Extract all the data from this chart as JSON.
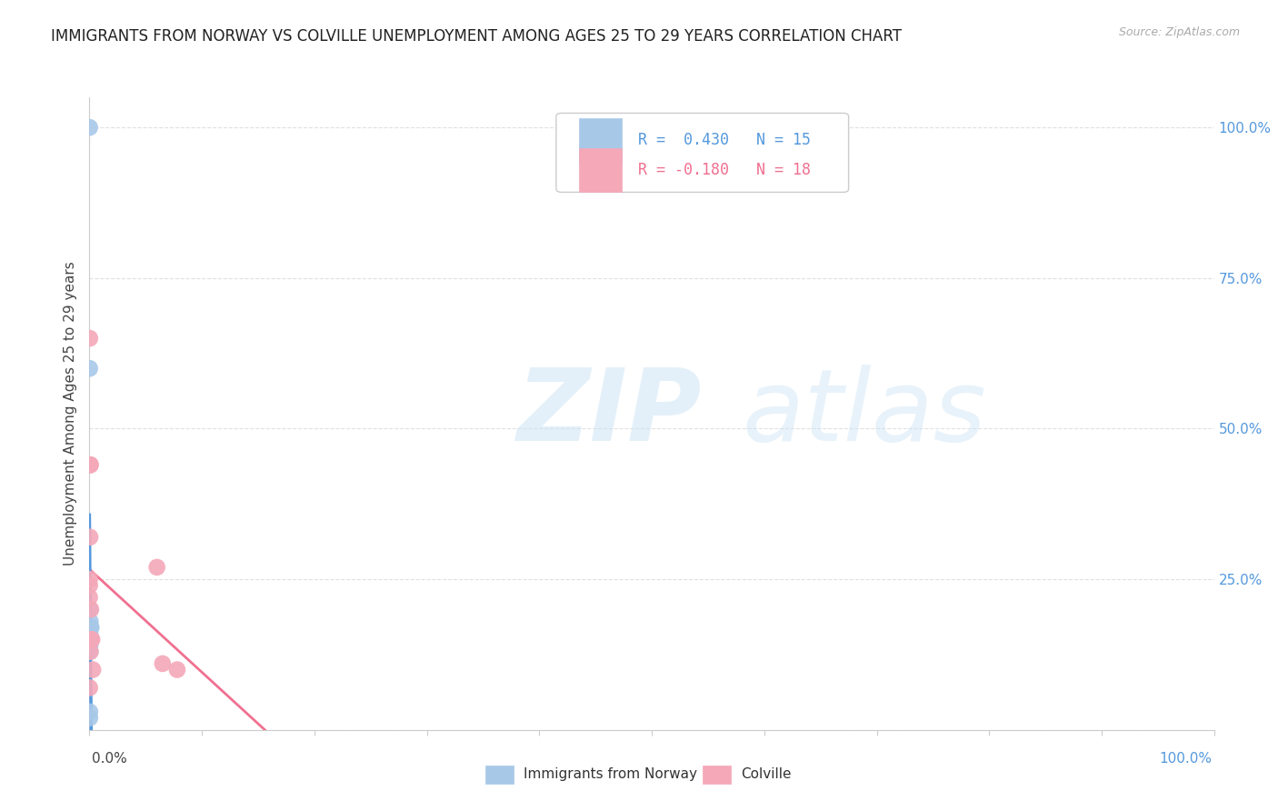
{
  "title": "IMMIGRANTS FROM NORWAY VS COLVILLE UNEMPLOYMENT AMONG AGES 25 TO 29 YEARS CORRELATION CHART",
  "source": "Source: ZipAtlas.com",
  "ylabel": "Unemployment Among Ages 25 to 29 years",
  "legend_label1": "Immigrants from Norway",
  "legend_label2": "Colville",
  "legend_R1": "R =  0.430",
  "legend_N1": "N = 15",
  "legend_R2": "R = -0.180",
  "legend_N2": "N = 18",
  "norway_color": "#a8c8e8",
  "colville_color": "#f4a8b8",
  "norway_line_color": "#5599dd",
  "colville_line_color": "#f07090",
  "norway_points_x": [
    0.0002,
    0.0002,
    0.0003,
    0.0003,
    0.0003,
    0.0004,
    0.0004,
    0.0005,
    0.0005,
    0.0006,
    0.0006,
    0.0007,
    0.0008,
    0.0009,
    0.0015
  ],
  "norway_points_y": [
    1.0,
    0.6,
    0.02,
    0.03,
    0.2,
    0.17,
    0.15,
    0.16,
    0.14,
    0.15,
    0.13,
    0.18,
    0.17,
    0.15,
    0.17
  ],
  "colville_points_x": [
    0.0001,
    0.0001,
    0.0002,
    0.0002,
    0.0003,
    0.0003,
    0.0004,
    0.0005,
    0.0006,
    0.0008,
    0.001,
    0.0012,
    0.0018,
    0.0022,
    0.003,
    0.06,
    0.065,
    0.078
  ],
  "colville_points_y": [
    0.25,
    0.22,
    0.24,
    0.07,
    0.65,
    0.44,
    0.44,
    0.32,
    0.15,
    0.13,
    0.44,
    0.2,
    0.15,
    0.15,
    0.1,
    0.27,
    0.11,
    0.1
  ],
  "xlim_pct": [
    0.0,
    1.0
  ],
  "ylim_pct": [
    0.0,
    1.05
  ],
  "yticks": [
    0.0,
    0.25,
    0.5,
    0.75,
    1.0
  ],
  "ytick_labels": [
    "",
    "25.0%",
    "50.0%",
    "75.0%",
    "100.0%"
  ],
  "xtick_positions": [
    0.0,
    0.1,
    0.2,
    0.3,
    0.4,
    0.5,
    0.6,
    0.7,
    0.8,
    0.9,
    1.0
  ],
  "grid_color": "#dddddd",
  "background_color": "#ffffff",
  "title_fontsize": 12,
  "axis_label_fontsize": 11,
  "tick_fontsize": 11,
  "legend_fontsize": 12
}
